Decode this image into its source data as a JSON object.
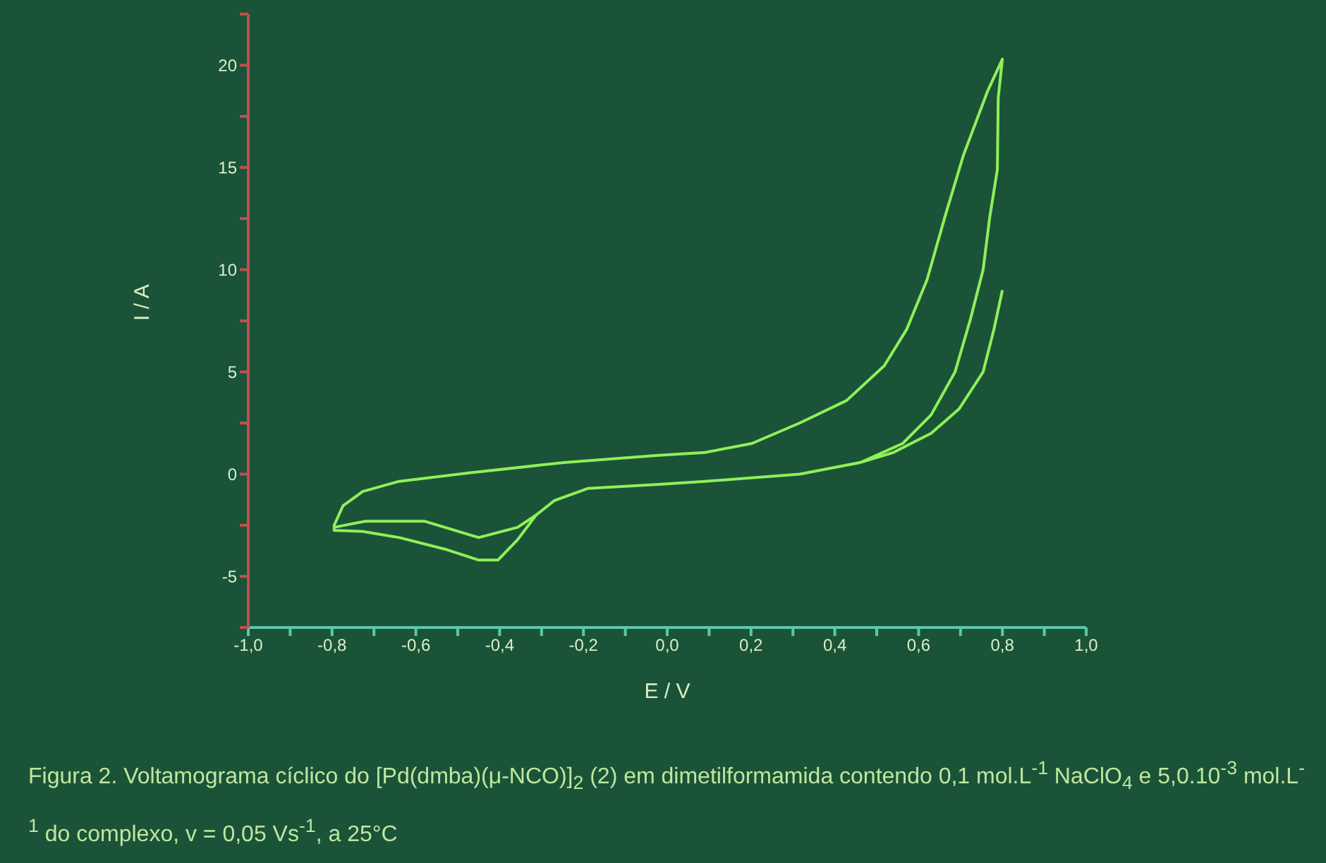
{
  "chart_data": {
    "type": "line",
    "xlabel": "E / V",
    "ylabel": "I / A",
    "annotations": [
      "Figura 2. Voltamograma cíclico do [Pd(dmba)(μ-NCO)]$_{2}$ (2) em dimetilformamida contendo 0,1 mol.L$^{-1}$ NaClO$_{4}$ e 5,0.10$^{-3}$ mol.L$^{-1}$ do complexo, v = 0,05 Vs$^{-1}$, a 25°C"
    ],
    "xlim": [
      -1.0,
      1.0
    ],
    "xticks": [
      {
        "value": -1.0,
        "label": "-1,0"
      },
      {
        "value": -0.9,
        "label": null
      },
      {
        "value": -0.8,
        "label": "-0,8"
      },
      {
        "value": -0.7,
        "label": null
      },
      {
        "value": -0.6,
        "label": "-0,6"
      },
      {
        "value": -0.5,
        "label": null
      },
      {
        "value": -0.4,
        "label": "-0,4"
      },
      {
        "value": -0.3,
        "label": null
      },
      {
        "value": -0.2,
        "label": "-0,2"
      },
      {
        "value": -0.1,
        "label": null
      },
      {
        "value": 0.0,
        "label": "0,0"
      },
      {
        "value": 0.1,
        "label": null
      },
      {
        "value": 0.2,
        "label": "0,2"
      },
      {
        "value": 0.3,
        "label": null
      },
      {
        "value": 0.4,
        "label": "0,4"
      },
      {
        "value": 0.5,
        "label": null
      },
      {
        "value": 0.6,
        "label": "0,6"
      },
      {
        "value": 0.7,
        "label": null
      },
      {
        "value": 0.8,
        "label": "0,8"
      },
      {
        "value": 0.9,
        "label": null
      },
      {
        "value": 1.0,
        "label": "1,0"
      }
    ],
    "ylim": [
      -7.5,
      22.5
    ],
    "yticks": [
      {
        "value": -7.5,
        "label": null
      },
      -5,
      {
        "value": -2.5,
        "label": null
      },
      0,
      {
        "value": 2.5,
        "label": null
      },
      5,
      {
        "value": 7.5,
        "label": null
      },
      10,
      {
        "value": 12.5,
        "label": null
      },
      15,
      {
        "value": 17.5,
        "label": null
      },
      20,
      {
        "value": 22.5,
        "label": null
      }
    ],
    "grid": false,
    "legend": false,
    "marker": "none",
    "line_style": "solid",
    "series": [
      {
        "color": "#8ef05a",
        "x": [
          0.8,
          0.78,
          0.754,
          0.697,
          0.63,
          0.54,
          0.46,
          0.316,
          0.09,
          -0.02,
          -0.19,
          -0.27,
          -0.313,
          -0.357,
          -0.404,
          -0.45,
          -0.525,
          -0.64,
          -0.727,
          -0.795,
          -0.795,
          -0.774,
          -0.727,
          -0.64,
          -0.47,
          -0.246,
          -0.02,
          0.09,
          0.202,
          0.316,
          0.428,
          0.518,
          0.572,
          0.62,
          0.663,
          0.707,
          0.764,
          0.8,
          0.79,
          0.788,
          0.77,
          0.754,
          0.724,
          0.687,
          0.63,
          0.562,
          0.461,
          0.316,
          0.09,
          -0.02,
          -0.19,
          -0.27,
          -0.313,
          -0.357,
          -0.45,
          -0.58,
          -0.72,
          -0.795
        ],
        "values": [
          9.0,
          7.1,
          5.0,
          3.2,
          2.0,
          1.06,
          0.57,
          0.0,
          -0.35,
          -0.5,
          -0.7,
          -1.3,
          -2.0,
          -3.2,
          -4.2,
          -4.2,
          -3.7,
          -3.1,
          -2.8,
          -2.75,
          -2.5,
          -1.55,
          -0.85,
          -0.35,
          0.07,
          0.57,
          0.92,
          1.06,
          1.5,
          2.5,
          3.6,
          5.3,
          7.1,
          9.5,
          12.6,
          15.6,
          18.7,
          20.3,
          18.4,
          14.9,
          12.6,
          10.0,
          7.6,
          5.0,
          2.9,
          1.5,
          0.57,
          0.0,
          -0.35,
          -0.5,
          -0.7,
          -1.3,
          -2.0,
          -2.6,
          -3.1,
          -2.3,
          -2.3,
          -2.6
        ]
      }
    ]
  }
}
